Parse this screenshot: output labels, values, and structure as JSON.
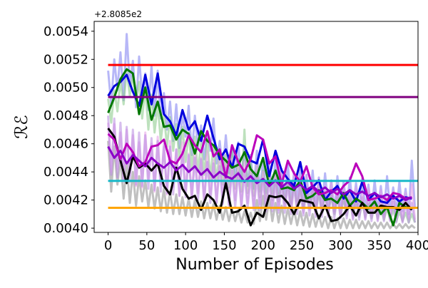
{
  "chart_data": {
    "type": "line",
    "title": "",
    "xlabel": "Number of Episodes",
    "ylabel": "ℛℰ",
    "offset_label": "+2.8085e2",
    "xlim": [
      -18,
      400
    ],
    "ylim": [
      0.00397,
      0.00547
    ],
    "xticks": [
      0,
      50,
      100,
      150,
      200,
      250,
      300,
      350,
      400
    ],
    "yticks": [
      0.004,
      0.0042,
      0.0044,
      0.0046,
      0.0048,
      0.005,
      0.0052,
      0.0054
    ],
    "ytick_labels": [
      "0.0040",
      "0.0042",
      "0.0044",
      "0.0046",
      "0.0048",
      "0.0050",
      "0.0052",
      "0.0054"
    ],
    "grid": false,
    "legend": "none",
    "x_smooth": [
      0,
      8,
      16,
      24,
      32,
      40,
      48,
      56,
      64,
      72,
      80,
      88,
      96,
      104,
      112,
      120,
      128,
      136,
      144,
      152,
      160,
      168,
      176,
      184,
      192,
      200,
      208,
      216,
      224,
      232,
      240,
      248,
      256,
      264,
      272,
      280,
      288,
      296,
      304,
      312,
      320,
      328,
      336,
      344,
      352,
      360,
      368,
      376,
      384,
      392
    ],
    "raw_x": [
      0,
      4,
      8,
      12,
      16,
      20,
      24,
      28,
      32,
      36,
      40,
      44,
      48,
      52,
      56,
      60,
      64,
      68,
      72,
      76,
      80,
      84,
      88,
      92,
      96,
      100,
      104,
      108,
      112,
      116,
      120,
      124,
      128,
      132,
      136,
      140,
      144,
      148,
      152,
      156,
      160,
      164,
      168,
      172,
      176,
      180,
      184,
      188,
      192,
      196,
      200,
      204,
      208,
      212,
      216,
      220,
      224,
      228,
      232,
      236,
      240,
      244,
      248,
      252,
      256,
      260,
      264,
      268,
      272,
      276,
      280,
      284,
      288,
      292,
      296,
      300,
      304,
      308,
      312,
      316,
      320,
      324,
      328,
      332,
      336,
      340,
      344,
      348,
      352,
      356,
      360,
      364,
      368,
      372,
      376,
      380,
      384,
      388,
      392,
      396
    ],
    "series": [
      {
        "color": "#0000dd",
        "raw_color": "#7b7bf0",
        "values": [
          0.00494,
          0.00501,
          0.00504,
          0.00509,
          0.00497,
          0.00487,
          0.00509,
          0.00488,
          0.0051,
          0.00481,
          0.00476,
          0.00466,
          0.00484,
          0.0047,
          0.00476,
          0.00462,
          0.0048,
          0.00464,
          0.00449,
          0.00456,
          0.00443,
          0.0046,
          0.00458,
          0.00448,
          0.00446,
          0.00463,
          0.00437,
          0.00455,
          0.00441,
          0.00435,
          0.0043,
          0.00447,
          0.00425,
          0.00429,
          0.00434,
          0.0042,
          0.00426,
          0.0043,
          0.00421,
          0.00427,
          0.00419,
          0.00433,
          0.0042,
          0.00425,
          0.00419,
          0.00418,
          0.00423,
          0.00419,
          0.00422,
          0.00421
        ],
        "raw_values": [
          0.00512,
          0.00488,
          0.0052,
          0.00498,
          0.00525,
          0.00491,
          0.00538,
          0.00501,
          0.00519,
          0.00486,
          0.00522,
          0.00493,
          0.0051,
          0.00484,
          0.00515,
          0.0048,
          0.00512,
          0.00478,
          0.00496,
          0.0047,
          0.0049,
          0.00462,
          0.00488,
          0.00457,
          0.00482,
          0.00465,
          0.00487,
          0.00452,
          0.0048,
          0.00458,
          0.00473,
          0.00449,
          0.00468,
          0.00455,
          0.00478,
          0.00446,
          0.00462,
          0.00441,
          0.00466,
          0.00439,
          0.00458,
          0.00436,
          0.00461,
          0.00433,
          0.00457,
          0.0043,
          0.00452,
          0.00428,
          0.00455,
          0.00426,
          0.00449,
          0.00425,
          0.00445,
          0.00423,
          0.0045,
          0.00421,
          0.00442,
          0.0042,
          0.00446,
          0.00418,
          0.0044,
          0.00419,
          0.00443,
          0.00416,
          0.00438,
          0.00417,
          0.00441,
          0.00415,
          0.00436,
          0.00414,
          0.00439,
          0.00416,
          0.00434,
          0.00412,
          0.00437,
          0.00415,
          0.00433,
          0.00413,
          0.00436,
          0.00414,
          0.00432,
          0.00412,
          0.00435,
          0.00413,
          0.00431,
          0.00411,
          0.00434,
          0.00412,
          0.0043,
          0.0041,
          0.00437,
          0.00413,
          0.00429,
          0.00411,
          0.00433,
          0.00412,
          0.00428,
          0.0041,
          0.00448,
          0.00414
        ]
      },
      {
        "color": "#007700",
        "raw_color": "#86c986",
        "values": [
          0.00482,
          0.00493,
          0.00506,
          0.00513,
          0.0051,
          0.00481,
          0.005,
          0.00477,
          0.0049,
          0.00472,
          0.00473,
          0.00463,
          0.0047,
          0.00467,
          0.00453,
          0.00469,
          0.00462,
          0.00459,
          0.00452,
          0.00448,
          0.00443,
          0.00445,
          0.00454,
          0.00442,
          0.00437,
          0.0045,
          0.0043,
          0.00441,
          0.00428,
          0.00429,
          0.00427,
          0.00434,
          0.00421,
          0.00423,
          0.00427,
          0.0042,
          0.00421,
          0.00418,
          0.00425,
          0.00416,
          0.00421,
          0.00418,
          0.00414,
          0.00419,
          0.0041,
          0.00415,
          0.00402,
          0.00418,
          0.00415,
          0.00414
        ],
        "raw_values": [
          0.00492,
          0.00475,
          0.00498,
          0.00483,
          0.00505,
          0.00488,
          0.00512,
          0.00494,
          0.00509,
          0.00491,
          0.00504,
          0.00478,
          0.005,
          0.0047,
          0.00495,
          0.00468,
          0.00488,
          0.00462,
          0.00481,
          0.00458,
          0.00479,
          0.00455,
          0.00474,
          0.00449,
          0.00472,
          0.00447,
          0.00468,
          0.00442,
          0.00465,
          0.0044,
          0.00461,
          0.00438,
          0.00463,
          0.00435,
          0.00459,
          0.00433,
          0.00456,
          0.00431,
          0.00452,
          0.00429,
          0.00455,
          0.00428,
          0.00449,
          0.00426,
          0.0047,
          0.00425,
          0.00446,
          0.00423,
          0.00444,
          0.00422,
          0.00441,
          0.00421,
          0.00439,
          0.0042,
          0.00437,
          0.00419,
          0.00435,
          0.00418,
          0.00433,
          0.00417,
          0.00431,
          0.00416,
          0.00429,
          0.00415,
          0.00428,
          0.00414,
          0.00426,
          0.00413,
          0.00425,
          0.00412,
          0.00424,
          0.00411,
          0.00423,
          0.0041,
          0.00422,
          0.0041,
          0.00421,
          0.00409,
          0.0042,
          0.00409,
          0.00419,
          0.00408,
          0.00418,
          0.00408,
          0.00417,
          0.00407,
          0.00416,
          0.00407,
          0.00415,
          0.00406,
          0.00414,
          0.00406,
          0.00413,
          0.00405,
          0.00412,
          0.00405,
          0.00411,
          0.00404,
          0.0041,
          0.00404
        ]
      },
      {
        "color": "#000000",
        "raw_color": "#8c8c8c",
        "values": [
          0.00471,
          0.00465,
          0.00448,
          0.00432,
          0.00451,
          0.00443,
          0.00446,
          0.00441,
          0.00446,
          0.0043,
          0.00424,
          0.00443,
          0.00428,
          0.00421,
          0.00423,
          0.00413,
          0.00424,
          0.0042,
          0.00411,
          0.00432,
          0.00411,
          0.00412,
          0.00416,
          0.00402,
          0.00411,
          0.00408,
          0.00423,
          0.00422,
          0.00423,
          0.00418,
          0.0041,
          0.0042,
          0.00419,
          0.00418,
          0.00407,
          0.00416,
          0.00405,
          0.00406,
          0.0041,
          0.00416,
          0.00409,
          0.00418,
          0.00411,
          0.00411,
          0.00416,
          0.00415,
          0.00415,
          0.00413,
          0.00418,
          0.00413
        ],
        "raw_values": [
          0.00462,
          0.00426,
          0.00458,
          0.00431,
          0.0045,
          0.00421,
          0.00445,
          0.00418,
          0.0044,
          0.00416,
          0.00437,
          0.00419,
          0.00434,
          0.00415,
          0.00431,
          0.00414,
          0.00429,
          0.00412,
          0.00428,
          0.00411,
          0.00426,
          0.0041,
          0.00424,
          0.0041,
          0.00422,
          0.00409,
          0.00421,
          0.00408,
          0.0042,
          0.00408,
          0.00419,
          0.00407,
          0.00418,
          0.00407,
          0.00417,
          0.00406,
          0.00416,
          0.00406,
          0.00415,
          0.00405,
          0.00414,
          0.00405,
          0.00413,
          0.00404,
          0.00412,
          0.00404,
          0.00411,
          0.00403,
          0.0042,
          0.00405,
          0.00423,
          0.00406,
          0.00421,
          0.00405,
          0.00418,
          0.00404,
          0.00416,
          0.00403,
          0.00414,
          0.00403,
          0.00413,
          0.00402,
          0.00412,
          0.00402,
          0.00411,
          0.00401,
          0.0041,
          0.00401,
          0.00409,
          0.00401,
          0.00408,
          0.004,
          0.00408,
          0.004,
          0.00407,
          0.004,
          0.00407,
          0.004,
          0.00406,
          0.004,
          0.00406,
          0.004,
          0.00405,
          0.004,
          0.00405,
          0.004,
          0.00404,
          0.004,
          0.00404,
          0.004,
          0.00404,
          0.004,
          0.00403,
          0.004,
          0.00403,
          0.004,
          0.00403,
          0.004,
          0.00402,
          0.004
        ]
      },
      {
        "color": "#bb00bb",
        "raw_color": "#e59de5",
        "values": [
          0.00467,
          0.00463,
          0.00449,
          0.0046,
          0.00454,
          0.00444,
          0.00447,
          0.00458,
          0.00459,
          0.00463,
          0.00448,
          0.00446,
          0.00453,
          0.00466,
          0.00459,
          0.00454,
          0.00469,
          0.00451,
          0.00456,
          0.00436,
          0.00459,
          0.00447,
          0.0044,
          0.00449,
          0.00466,
          0.00463,
          0.00446,
          0.00451,
          0.00431,
          0.00448,
          0.00439,
          0.00433,
          0.00444,
          0.00429,
          0.00424,
          0.00425,
          0.00427,
          0.00424,
          0.0043,
          0.00434,
          0.00446,
          0.00437,
          0.0042,
          0.00421,
          0.00423,
          0.0042,
          0.00425,
          0.00424,
          0.00421,
          0.00422
        ],
        "raw_values": [
          0.00475,
          0.0044,
          0.00474,
          0.00442,
          0.00468,
          0.00433,
          0.0047,
          0.00438,
          0.00466,
          0.0043,
          0.00461,
          0.00429,
          0.00468,
          0.00435,
          0.0046,
          0.00426,
          0.00465,
          0.00431,
          0.00458,
          0.00424,
          0.00462,
          0.00429,
          0.00456,
          0.00423,
          0.00461,
          0.00427,
          0.00453,
          0.00421,
          0.00458,
          0.00425,
          0.0045,
          0.00419,
          0.00455,
          0.00423,
          0.00448,
          0.00418,
          0.00452,
          0.00421,
          0.00446,
          0.00417,
          0.00449,
          0.0042,
          0.00444,
          0.00416,
          0.00447,
          0.00418,
          0.00442,
          0.00415,
          0.00445,
          0.00417,
          0.0044,
          0.00414,
          0.00443,
          0.00416,
          0.00438,
          0.00413,
          0.00441,
          0.00415,
          0.00436,
          0.00412,
          0.00439,
          0.00414,
          0.00434,
          0.00411,
          0.00437,
          0.00413,
          0.00432,
          0.0041,
          0.00435,
          0.00412,
          0.0043,
          0.00409,
          0.00433,
          0.00411,
          0.00428,
          0.00408,
          0.00431,
          0.0041,
          0.00426,
          0.00407,
          0.00429,
          0.00409,
          0.00425,
          0.00407,
          0.00428,
          0.00408,
          0.00424,
          0.00406,
          0.00427,
          0.00408,
          0.00423,
          0.00406,
          0.00426,
          0.00407,
          0.00422,
          0.00405,
          0.00425,
          0.00407,
          0.00431,
          0.00406
        ]
      },
      {
        "color": "#8a00c8",
        "raw_color": "#b688e0",
        "values": [
          0.00458,
          0.0045,
          0.00455,
          0.00446,
          0.00452,
          0.00448,
          0.00444,
          0.0045,
          0.00446,
          0.00443,
          0.00447,
          0.00441,
          0.00445,
          0.0044,
          0.00444,
          0.00438,
          0.00442,
          0.00436,
          0.0044,
          0.00437,
          0.00435,
          0.00439,
          0.00433,
          0.00437,
          0.00432,
          0.00435,
          0.0043,
          0.00434,
          0.00429,
          0.00433,
          0.00428,
          0.00431,
          0.00427,
          0.0043,
          0.00426,
          0.00429,
          0.00425,
          0.00428,
          0.00424,
          0.00427,
          0.00424,
          0.00426,
          0.00423,
          0.00425,
          0.00422,
          0.00424,
          0.00421,
          0.00423,
          0.0042,
          0.00422
        ],
        "raw_values": [
          0.0048,
          0.00438,
          0.00478,
          0.00436,
          0.00475,
          0.00434,
          0.00472,
          0.00433,
          0.0047,
          0.00431,
          0.00468,
          0.0043,
          0.00466,
          0.00428,
          0.00464,
          0.00427,
          0.00462,
          0.00426,
          0.0046,
          0.00425,
          0.00458,
          0.00424,
          0.00456,
          0.00423,
          0.00454,
          0.00422,
          0.00452,
          0.00421,
          0.0045,
          0.0042,
          0.00449,
          0.00419,
          0.00447,
          0.00418,
          0.00446,
          0.00418,
          0.00444,
          0.00417,
          0.00443,
          0.00416,
          0.00441,
          0.00415,
          0.0044,
          0.00415,
          0.00439,
          0.00414,
          0.00437,
          0.00413,
          0.00436,
          0.00413,
          0.00435,
          0.00412,
          0.00434,
          0.00412,
          0.00433,
          0.00411,
          0.00432,
          0.00411,
          0.00431,
          0.0041,
          0.0043,
          0.0041,
          0.00429,
          0.00409,
          0.00428,
          0.00409,
          0.00427,
          0.00408,
          0.00427,
          0.00408,
          0.00426,
          0.00408,
          0.00425,
          0.00407,
          0.00424,
          0.00407,
          0.00424,
          0.00407,
          0.00423,
          0.00406,
          0.00422,
          0.00406,
          0.00422,
          0.00406,
          0.00421,
          0.00405,
          0.00421,
          0.00405,
          0.0042,
          0.00405,
          0.0042,
          0.00405,
          0.00419,
          0.00404,
          0.00419,
          0.00404,
          0.00418,
          0.00404,
          0.00418,
          0.00404
        ]
      }
    ],
    "reference_lines": [
      {
        "color": "#ff0000",
        "y": 0.00516
      },
      {
        "color": "#800080",
        "y": 0.004932
      },
      {
        "color": "#1ab9c9",
        "y": 0.004336
      },
      {
        "color": "#ffa500",
        "y": 0.004145
      }
    ]
  }
}
